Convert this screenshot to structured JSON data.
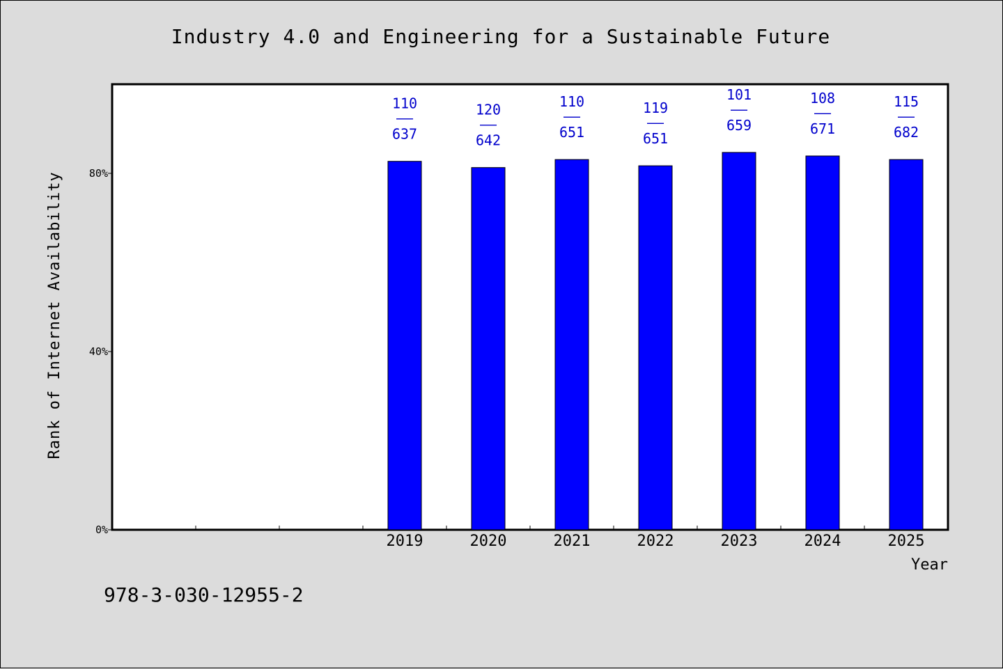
{
  "chart_data": {
    "type": "bar",
    "title": "Industry 4.0 and Engineering for a Sustainable Future",
    "xlabel": "Year",
    "ylabel": "Rank of Internet Availability",
    "categories": [
      "2019",
      "2020",
      "2021",
      "2022",
      "2023",
      "2024",
      "2025"
    ],
    "values": [
      82.7,
      81.3,
      83.1,
      81.7,
      84.7,
      83.9,
      83.1
    ],
    "data_labels": [
      {
        "top": "110",
        "sep": "——",
        "bottom": "637"
      },
      {
        "top": "120",
        "sep": "——",
        "bottom": "642"
      },
      {
        "top": "110",
        "sep": "——",
        "bottom": "651"
      },
      {
        "top": "119",
        "sep": "——",
        "bottom": "651"
      },
      {
        "top": "101",
        "sep": "——",
        "bottom": "659"
      },
      {
        "top": "108",
        "sep": "——",
        "bottom": "671"
      },
      {
        "top": "115",
        "sep": "——",
        "bottom": "682"
      }
    ],
    "yticks": [
      0,
      40,
      80
    ],
    "ytick_labels": [
      "0%",
      "40%",
      "80%"
    ],
    "ylim": [
      0,
      100
    ],
    "leading_empty_slots": 3,
    "grid": false,
    "bar_color": "#0000ff",
    "label_color": "#0000cc"
  },
  "footer": {
    "isbn": "978-3-030-12955-2"
  }
}
